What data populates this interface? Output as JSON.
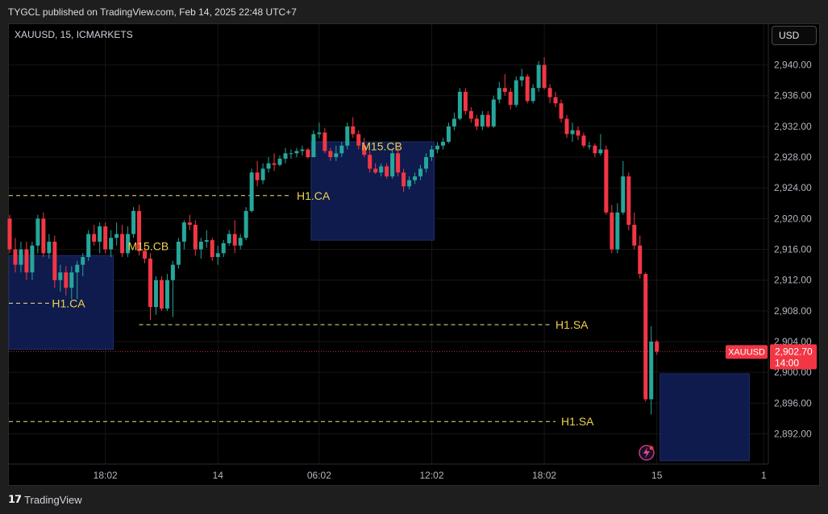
{
  "header": {
    "caption": "TYGCL published on TradingView.com, Feb 14, 2025 22:48 UTC+7",
    "symbol": "XAUUSD, 15, ICMARKETS",
    "currency_button": "USD"
  },
  "footer": {
    "brand": "TradingView"
  },
  "colors": {
    "up": "#26a69a",
    "down": "#f23645",
    "zone": "#0f1d52",
    "level": "#f3e27e",
    "label": "#f0d24a"
  },
  "chart_data": {
    "type": "candlestick",
    "ylim": [
      2888.5,
      2942.5
    ],
    "y_ticks": [
      2940,
      2936,
      2932,
      2928,
      2924,
      2920,
      2916,
      2912,
      2908,
      2904,
      2900,
      2896,
      2892
    ],
    "y_tick_labels": [
      "2,940.00",
      "2,936.00",
      "2,932.00",
      "2,928.00",
      "2,924.00",
      "2,920.00",
      "2,916.00",
      "2,912.00",
      "2,908.00",
      "2,904.00",
      "2,900.00",
      "2,896.00",
      "2,892.00"
    ],
    "x_ticks": [
      {
        "label": "18:02",
        "index": 17
      },
      {
        "label": "14",
        "index": 37
      },
      {
        "label": "06:02",
        "index": 55
      },
      {
        "label": "12:02",
        "index": 75
      },
      {
        "label": "18:02",
        "index": 95
      },
      {
        "label": "15",
        "index": 115
      },
      {
        "label": "1",
        "index": 134
      }
    ],
    "n_slots": 135,
    "current_price": {
      "symbol": "XAUUSD",
      "price": "2,902.70",
      "time": "14:00",
      "value": 2902.7
    },
    "candles": [
      [
        2920,
        2920.5,
        2915.5,
        2916
      ],
      [
        2916,
        2917.5,
        2913,
        2914
      ],
      [
        2914,
        2917,
        2913,
        2916
      ],
      [
        2916,
        2917,
        2912,
        2913
      ],
      [
        2913,
        2917,
        2912,
        2916.5
      ],
      [
        2916.5,
        2920.5,
        2915.5,
        2920
      ],
      [
        2920,
        2920.8,
        2915,
        2915.5
      ],
      [
        2915.5,
        2918,
        2914.8,
        2917
      ],
      [
        2917,
        2917.8,
        2911,
        2912
      ],
      [
        2912,
        2914,
        2910.5,
        2913
      ],
      [
        2913,
        2913.8,
        2910,
        2911
      ],
      [
        2911,
        2913.8,
        2909.5,
        2913
      ],
      [
        2913,
        2914.5,
        2909.5,
        2914
      ],
      [
        2914,
        2915.5,
        2912.5,
        2915
      ],
      [
        2915,
        2918.5,
        2914.5,
        2918
      ],
      [
        2918,
        2919.2,
        2916.5,
        2917
      ],
      [
        2917,
        2919.5,
        2915.5,
        2919
      ],
      [
        2919,
        2919.5,
        2915.5,
        2916
      ],
      [
        2916,
        2918.5,
        2915,
        2917.5
      ],
      [
        2917.5,
        2919.5,
        2916.5,
        2918
      ],
      [
        2918,
        2919.2,
        2915,
        2915.5
      ],
      [
        2915.5,
        2919,
        2915,
        2918
      ],
      [
        2918,
        2921.5,
        2917.5,
        2921
      ],
      [
        2921,
        2921.8,
        2915.2,
        2915.8
      ],
      [
        2915.8,
        2916.5,
        2914.2,
        2914.8
      ],
      [
        2914.8,
        2915.5,
        2906.8,
        2908.5
      ],
      [
        2908.5,
        2912.5,
        2907.5,
        2912
      ],
      [
        2912,
        2912.5,
        2908,
        2908.3
      ],
      [
        2908.3,
        2912.8,
        2908,
        2912
      ],
      [
        2912,
        2914.5,
        2907.2,
        2914
      ],
      [
        2914,
        2917.5,
        2913.5,
        2917
      ],
      [
        2917,
        2919.8,
        2916,
        2919.5
      ],
      [
        2919.5,
        2920.5,
        2918.5,
        2919.2
      ],
      [
        2919.2,
        2919.8,
        2915.2,
        2916
      ],
      [
        2916,
        2917.5,
        2914.8,
        2917
      ],
      [
        2917,
        2918.5,
        2916.2,
        2917.2
      ],
      [
        2917.2,
        2917.5,
        2914.5,
        2915
      ],
      [
        2915,
        2916.5,
        2914,
        2915.5
      ],
      [
        2915.5,
        2917.2,
        2915,
        2916.8
      ],
      [
        2916.8,
        2918.5,
        2916.5,
        2918
      ],
      [
        2918,
        2919.8,
        2915.5,
        2916.5
      ],
      [
        2916.5,
        2918,
        2916,
        2917.5
      ],
      [
        2917.5,
        2921.5,
        2917.2,
        2921
      ],
      [
        2921,
        2926.5,
        2920.8,
        2926
      ],
      [
        2926,
        2927.5,
        2924.2,
        2925
      ],
      [
        2925,
        2927.2,
        2924.5,
        2926.5
      ],
      [
        2926.5,
        2928,
        2926,
        2927.2
      ],
      [
        2927.2,
        2928.5,
        2926.2,
        2927
      ],
      [
        2927,
        2928.2,
        2926.8,
        2927.8
      ],
      [
        2927.8,
        2929.2,
        2927.2,
        2928.5
      ],
      [
        2928.5,
        2929,
        2927.8,
        2928.5
      ],
      [
        2928.5,
        2929.2,
        2928,
        2928.8
      ],
      [
        2928.8,
        2929.5,
        2928.2,
        2929
      ],
      [
        2929,
        2929.2,
        2927.8,
        2928
      ],
      [
        2928,
        2931.5,
        2928,
        2931
      ],
      [
        2931,
        2932.5,
        2930.5,
        2931.2
      ],
      [
        2931.2,
        2931.8,
        2928.5,
        2928.8
      ],
      [
        2928.8,
        2929.2,
        2927.5,
        2928
      ],
      [
        2928,
        2929.5,
        2927.5,
        2928.5
      ],
      [
        2928.5,
        2930,
        2928,
        2929.5
      ],
      [
        2929.5,
        2932.5,
        2929,
        2932
      ],
      [
        2932,
        2933.2,
        2930.5,
        2931
      ],
      [
        2931,
        2931.5,
        2929,
        2929.5
      ],
      [
        2929.5,
        2930.5,
        2928,
        2928.3
      ],
      [
        2928.3,
        2928.8,
        2926,
        2926.5
      ],
      [
        2926.5,
        2927.2,
        2925.8,
        2926
      ],
      [
        2926,
        2927.2,
        2925.5,
        2926.8
      ],
      [
        2926.8,
        2927.2,
        2925.2,
        2925.5
      ],
      [
        2925.5,
        2929,
        2925.2,
        2928.5
      ],
      [
        2928.5,
        2929.5,
        2925.5,
        2926
      ],
      [
        2926,
        2926.5,
        2923.5,
        2924.2
      ],
      [
        2924.2,
        2925.5,
        2923.8,
        2925
      ],
      [
        2925,
        2926,
        2924.5,
        2925.5
      ],
      [
        2925.5,
        2927,
        2925,
        2926.5
      ],
      [
        2926.5,
        2928.5,
        2926,
        2928
      ],
      [
        2928,
        2929.5,
        2927.5,
        2929
      ],
      [
        2929,
        2930,
        2928.5,
        2929.5
      ],
      [
        2929.5,
        2930.5,
        2929,
        2930
      ],
      [
        2930,
        2932.5,
        2929.8,
        2932
      ],
      [
        2932,
        2933.8,
        2931.5,
        2933
      ],
      [
        2933,
        2937,
        2932.8,
        2936.5
      ],
      [
        2936.5,
        2937,
        2933.5,
        2934
      ],
      [
        2934,
        2934.5,
        2932.5,
        2933
      ],
      [
        2933,
        2933.5,
        2931.5,
        2932
      ],
      [
        2932,
        2934,
        2931.5,
        2933.5
      ],
      [
        2933.5,
        2934,
        2931.8,
        2932
      ],
      [
        2932,
        2936,
        2931.8,
        2935.5
      ],
      [
        2935.5,
        2937.8,
        2935,
        2937
      ],
      [
        2937,
        2938.8,
        2936,
        2936.5
      ],
      [
        2936.5,
        2937,
        2934.2,
        2934.8
      ],
      [
        2934.8,
        2938.5,
        2934.5,
        2938
      ],
      [
        2938,
        2939.5,
        2937.2,
        2938.5
      ],
      [
        2938.5,
        2938.8,
        2935,
        2935.3
      ],
      [
        2935.3,
        2937.5,
        2935,
        2937
      ],
      [
        2937,
        2940.5,
        2936.5,
        2940
      ],
      [
        2940,
        2941,
        2936.8,
        2937
      ],
      [
        2937,
        2937.5,
        2935,
        2935.8
      ],
      [
        2935.8,
        2936.5,
        2934.5,
        2935
      ],
      [
        2935,
        2935.5,
        2932.5,
        2933
      ],
      [
        2933,
        2933.5,
        2930.5,
        2931
      ],
      [
        2931,
        2932.5,
        2930,
        2931.5
      ],
      [
        2931.5,
        2932,
        2930.2,
        2930.8
      ],
      [
        2930.8,
        2931.2,
        2929.2,
        2929.5
      ],
      [
        2929.5,
        2930,
        2929,
        2929.5
      ],
      [
        2929.5,
        2929.8,
        2928,
        2928.5
      ],
      [
        2928.5,
        2931,
        2928.2,
        2929
      ],
      [
        2929,
        2929.5,
        2920.5,
        2920.8
      ],
      [
        2920.8,
        2921.8,
        2915.5,
        2916
      ],
      [
        2916,
        2922,
        2915.5,
        2920.8
      ],
      [
        2920.8,
        2927.5,
        2920.5,
        2925.5
      ],
      [
        2925.5,
        2926,
        2918.5,
        2919.2
      ],
      [
        2919.2,
        2920.8,
        2916,
        2916.5
      ],
      [
        2916.5,
        2917.8,
        2912.2,
        2912.8
      ],
      [
        2912.8,
        2913,
        2896.2,
        2896.5
      ],
      [
        2896.5,
        2906,
        2894.5,
        2904
      ],
      [
        2904,
        2904.2,
        2902.3,
        2902.7
      ]
    ]
  },
  "zones": [
    {
      "top": 2915.2,
      "bottom": 2903.0,
      "start": 0,
      "end": 18
    },
    {
      "top": 2930.0,
      "bottom": 2917.2,
      "start": 54,
      "end": 75
    },
    {
      "top": 2899.8,
      "bottom": 2888.5,
      "start": 116,
      "end": 131
    }
  ],
  "levels": [
    {
      "value": 2923.0,
      "start": -1,
      "end": 50
    },
    {
      "value": 2909.0,
      "start": -1,
      "end": 7
    },
    {
      "value": 2906.2,
      "start": 23,
      "end": 96
    },
    {
      "value": 2893.6,
      "start": -1,
      "end": 97
    }
  ],
  "annotations": [
    {
      "text": "H1.CA",
      "x": 51,
      "y": 2923.0
    },
    {
      "text": "H1.CA",
      "x": 7.5,
      "y": 2909.0
    },
    {
      "text": "M15.CB",
      "x": 21,
      "y": 2916.4
    },
    {
      "text": "M15.CB",
      "x": 62.5,
      "y": 2929.4
    },
    {
      "text": "H1.SA",
      "x": 97,
      "y": 2906.2
    },
    {
      "text": "H1.SA",
      "x": 98,
      "y": 2893.6
    }
  ]
}
